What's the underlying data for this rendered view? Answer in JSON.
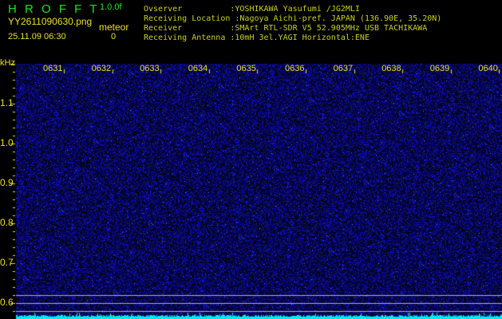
{
  "header": {
    "app_title": "H R O F F T",
    "version": "1.0.0f",
    "filename": "YY2611090630.png",
    "datetime": "25.11.09 06:30",
    "meteor_label": "meteor",
    "meteor_count": "0"
  },
  "info": [
    {
      "label": "Ovserver          ",
      "value": ":YOSHIKAWA Yasufumi /JG2MLI"
    },
    {
      "label": "Receiving Location",
      "value": " :Nagoya Aichi-pref. JAPAN (136.90E, 35.20N)"
    },
    {
      "label": "Receiver          ",
      "value": ":SMArt RTL-SDR V5 52.905MHz USB TACHIKAWA"
    },
    {
      "label": "Receiving Antenna ",
      "value": ":10mH 3el.YAGI Horizontal:ENE"
    }
  ],
  "axis": {
    "unit": "kHz",
    "freq_labels": [
      "1.1",
      "1.0",
      "0.9",
      "0.8",
      "0.7",
      "0.6"
    ],
    "time_labels": [
      "0631",
      "0632",
      "0633",
      "0634",
      "0635",
      "0636",
      "0637",
      "0638",
      "0639",
      "0640"
    ]
  },
  "colors": {
    "noise": "#1a1acc",
    "background": "#000010",
    "lines": "#b0b0b0",
    "cyan": "#00e8f0",
    "text": "#e8e020"
  }
}
